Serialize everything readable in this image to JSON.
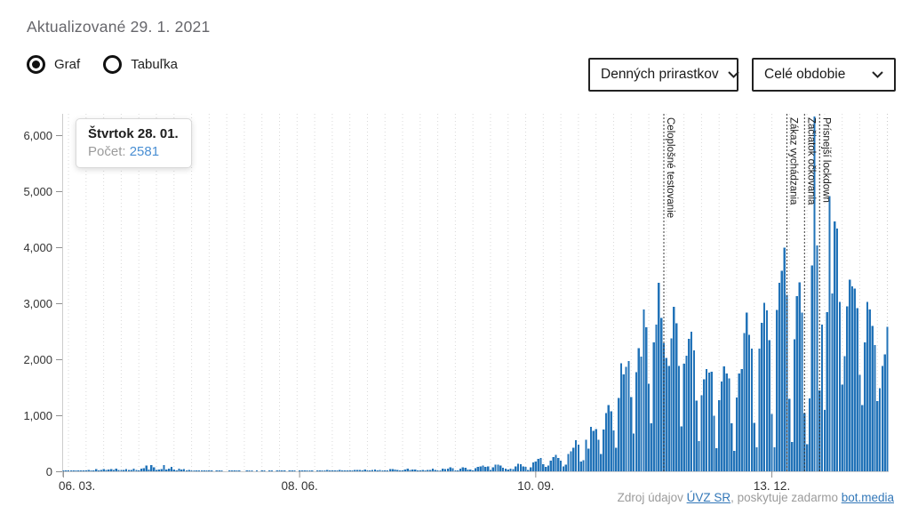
{
  "header": {
    "updated": "Aktualizované 29. 1. 2021"
  },
  "controls": {
    "view_options": [
      {
        "label": "Graf",
        "selected": true
      },
      {
        "label": "Tabuľka",
        "selected": false
      }
    ],
    "metric_select": {
      "value": "Denných prirastkov"
    },
    "period_select": {
      "value": "Celé obdobie"
    }
  },
  "tooltip": {
    "title": "Štvrtok 28. 01.",
    "label": "Počet:",
    "value": "2581"
  },
  "footer": {
    "prefix": "Zdroj údajov ",
    "source_link": "ÚVZ SR",
    "middle": ", poskytuje zadarmo ",
    "provider_link": "bot.media"
  },
  "colors": {
    "bar": "#2273b8",
    "axis": "#cccccc",
    "tick": "#8f8f8f",
    "tick_label": "#333333",
    "grid": "#d9d9d9",
    "annotation": "#3a3a3a",
    "tooltip_value": "#4a8fd3",
    "link": "#3277b8"
  },
  "chart_data": {
    "type": "bar",
    "title": "",
    "xlabel": "",
    "ylabel": "",
    "start_date": "06. 03.",
    "end_date": "28. 01.",
    "ylim": [
      0,
      6350
    ],
    "grid": "vertical-weekly-dotted",
    "y_ticks": [
      {
        "label": "0",
        "value": 0
      },
      {
        "label": "1,000",
        "value": 1000
      },
      {
        "label": "2,000",
        "value": 2000
      },
      {
        "label": "3,000",
        "value": 3000
      },
      {
        "label": "4,000",
        "value": 4000
      },
      {
        "label": "5,000",
        "value": 5000
      },
      {
        "label": "6,000",
        "value": 6000
      }
    ],
    "x_ticks": [
      {
        "label": "06. 03.",
        "index": 0
      },
      {
        "label": "08. 06.",
        "index": 94
      },
      {
        "label": "10. 09.",
        "index": 188
      },
      {
        "label": "13. 12.",
        "index": 282
      }
    ],
    "annotations": [
      {
        "label": "Celoplošné testovanie",
        "index": 239
      },
      {
        "label": "Zákaz vychádzania",
        "index": 288
      },
      {
        "label": "Začiatok očkovania",
        "index": 295
      },
      {
        "label": "Prísnejší lockdown",
        "index": 301
      }
    ],
    "highlighted_index": 328,
    "values": [
      1,
      2,
      2,
      3,
      5,
      7,
      9,
      11,
      17,
      12,
      25,
      19,
      14,
      41,
      19,
      23,
      37,
      22,
      35,
      43,
      21,
      45,
      24,
      27,
      22,
      37,
      26,
      24,
      49,
      24,
      14,
      47,
      58,
      101,
      28,
      114,
      72,
      27,
      28,
      40,
      114,
      35,
      45,
      81,
      35,
      13,
      45,
      35,
      40,
      13,
      20,
      7,
      5,
      9,
      10,
      4,
      8,
      16,
      1,
      2,
      0,
      8,
      10,
      5,
      0,
      0,
      3,
      6,
      8,
      2,
      1,
      0,
      0,
      1,
      3,
      2,
      0,
      1,
      0,
      5,
      2,
      0,
      3,
      1,
      0,
      2,
      1,
      1,
      2,
      0,
      3,
      1,
      1,
      0,
      2,
      5,
      1,
      3,
      9,
      2,
      0,
      1,
      5,
      10,
      14,
      20,
      10,
      15,
      1,
      10,
      23,
      13,
      10,
      12,
      3,
      5,
      20,
      20,
      25,
      19,
      29,
      11,
      5,
      23,
      31,
      14,
      23,
      13,
      6,
      14,
      38,
      41,
      29,
      23,
      12,
      4,
      28,
      49,
      23,
      30,
      31,
      13,
      11,
      23,
      14,
      20,
      27,
      45,
      27,
      11,
      5,
      49,
      43,
      47,
      68,
      54,
      9,
      18,
      49,
      75,
      62,
      33,
      29,
      16,
      54,
      80,
      91,
      100,
      77,
      84,
      24,
      68,
      119,
      123,
      102,
      64,
      50,
      32,
      45,
      40,
      90,
      137,
      126,
      88,
      78,
      24,
      72,
      161,
      178,
      226,
      235,
      131,
      80,
      105,
      188,
      252,
      290,
      235,
      188,
      91,
      119,
      310,
      360,
      419,
      552,
      478,
      175,
      202,
      567,
      407,
      797,
      720,
      752,
      561,
      310,
      746,
      1037,
      1184,
      1068,
      727,
      417,
      1312,
      1929,
      1728,
      1869,
      1968,
      1322,
      672,
      1773,
      2202,
      2044,
      2890,
      2573,
      1567,
      860,
      2300,
      2617,
      3363,
      2736,
      2282,
      2025,
      1884,
      2375,
      2939,
      2641,
      1885,
      804,
      1920,
      2064,
      2362,
      2494,
      2161,
      1263,
      537,
      1355,
      1646,
      1827,
      1759,
      1777,
      989,
      414,
      1272,
      1607,
      1876,
      1743,
      1658,
      859,
      364,
      1315,
      1743,
      1823,
      2468,
      2831,
      2435,
      2193,
      866,
      427,
      2194,
      2650,
      3011,
      2876,
      2341,
      1022,
      428,
      2883,
      3363,
      3580,
      3991,
      3151,
      1297,
      525,
      2357,
      3127,
      3376,
      2836,
      1043,
      483,
      1302,
      3676,
      6334,
      4029,
      1447,
      2621,
      1094,
      2841,
      4909,
      3174,
      4463,
      4333,
      3025,
      1549,
      2053,
      2942,
      3422,
      3302,
      3260,
      2916,
      1721,
      1181,
      2301,
      3024,
      2891,
      2595,
      2252,
      1256,
      1482,
      1883,
      2090,
      2581
    ]
  }
}
